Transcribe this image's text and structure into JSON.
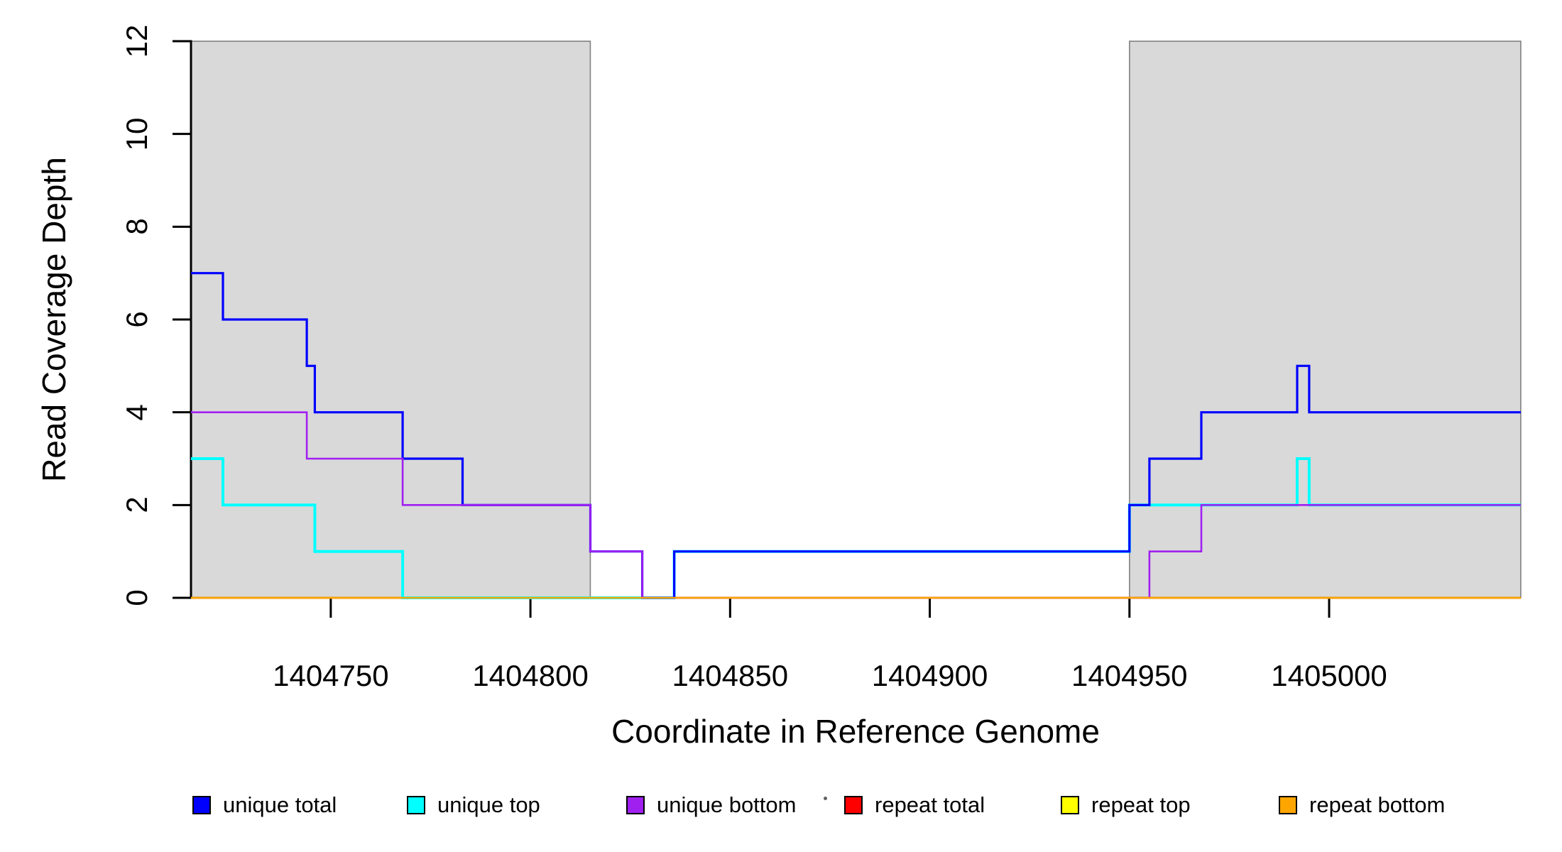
{
  "chart_data": {
    "type": "line",
    "step": true,
    "title": "",
    "xlabel": "Coordinate in Reference Genome",
    "ylabel": "Read Coverage Depth",
    "xlim": [
      1404715,
      1405048
    ],
    "ylim": [
      0,
      12
    ],
    "xticks": [
      1404750,
      1404800,
      1404850,
      1404900,
      1404950,
      1405000
    ],
    "yticks": [
      0,
      2,
      4,
      6,
      8,
      10,
      12
    ],
    "grid": false,
    "legend_position": "bottom",
    "highlight_regions": [
      {
        "x0": 1404715,
        "x1": 1404815,
        "color": "#d9d9d9"
      },
      {
        "x0": 1404950,
        "x1": 1405048,
        "color": "#d9d9d9"
      }
    ],
    "series": [
      {
        "name": "unique total",
        "color": "#0000ff",
        "points": [
          [
            1404715,
            7
          ],
          [
            1404723,
            6
          ],
          [
            1404744,
            5
          ],
          [
            1404746,
            4
          ],
          [
            1404768,
            3
          ],
          [
            1404783,
            2
          ],
          [
            1404815,
            1
          ],
          [
            1404828,
            0
          ],
          [
            1404836,
            1
          ],
          [
            1404950,
            2
          ],
          [
            1404955,
            3
          ],
          [
            1404968,
            4
          ],
          [
            1404992,
            5
          ],
          [
            1404995,
            4
          ]
        ]
      },
      {
        "name": "unique top",
        "color": "#00ffff",
        "points": [
          [
            1404715,
            3
          ],
          [
            1404723,
            2
          ],
          [
            1404746,
            1
          ],
          [
            1404768,
            0
          ],
          [
            1404836,
            1
          ],
          [
            1404950,
            2
          ],
          [
            1404992,
            3
          ],
          [
            1404995,
            2
          ]
        ]
      },
      {
        "name": "unique bottom",
        "color": "#a020f0",
        "points": [
          [
            1404715,
            4
          ],
          [
            1404744,
            3
          ],
          [
            1404768,
            2
          ],
          [
            1404815,
            1
          ],
          [
            1404828,
            0
          ],
          [
            1404955,
            1
          ],
          [
            1404968,
            2
          ]
        ]
      },
      {
        "name": "repeat total",
        "color": "#ff0000",
        "points": [
          [
            1404715,
            0
          ]
        ]
      },
      {
        "name": "repeat top",
        "color": "#ffff00",
        "points": [
          [
            1404715,
            0
          ]
        ]
      },
      {
        "name": "repeat bottom",
        "color": "#ffa500",
        "points": [
          [
            1404715,
            0
          ]
        ]
      }
    ],
    "draw_order": [
      "repeat total",
      "repeat top",
      "unique top",
      "unique total",
      "unique bottom",
      "repeat bottom"
    ],
    "axis_color": "#000000",
    "background_color": "#ffffff"
  }
}
